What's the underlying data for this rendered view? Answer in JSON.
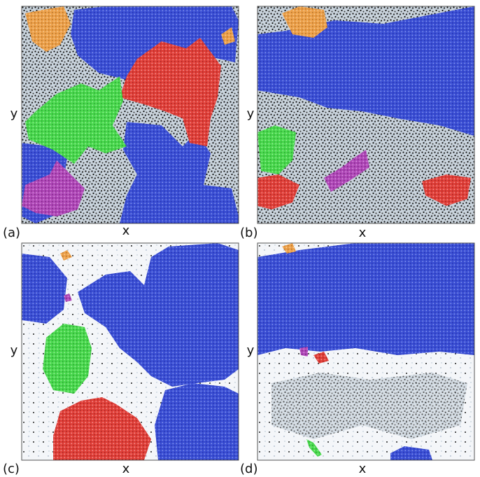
{
  "panels": [
    {
      "label": "(a)",
      "x_label": "x",
      "y_label": "y"
    },
    {
      "label": "(b)",
      "x_label": "x",
      "y_label": "y"
    },
    {
      "label": "(c)",
      "x_label": "x",
      "y_label": "y"
    },
    {
      "label": "(d)",
      "x_label": "x",
      "y_label": "y"
    }
  ]
}
